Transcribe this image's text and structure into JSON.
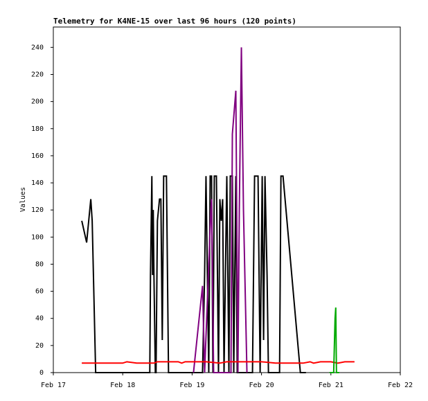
{
  "chart_data": {
    "type": "line",
    "title": "Telemetry for K4NE-15 over last 96 hours (120 points)",
    "y_label": "Values",
    "xlim": [
      17,
      22
    ],
    "xticks": [
      {
        "value": 17,
        "label": "Feb 17"
      },
      {
        "value": 18,
        "label": "Feb 18"
      },
      {
        "value": 19,
        "label": "Feb 19"
      },
      {
        "value": 20,
        "label": "Feb 20"
      },
      {
        "value": 21,
        "label": "Feb 21"
      },
      {
        "value": 22,
        "label": "Feb 22"
      }
    ],
    "ylim": [
      0,
      255
    ],
    "yticks": [
      0,
      20,
      40,
      60,
      80,
      100,
      120,
      140,
      160,
      180,
      200,
      220,
      240
    ],
    "series": [
      {
        "color": "#000000",
        "x": [
          17.41,
          17.48,
          17.51,
          17.54,
          17.56,
          17.61,
          18.39,
          18.4,
          18.42,
          18.43,
          18.44,
          18.45,
          18.47,
          18.48,
          18.5,
          18.53,
          18.55,
          18.57,
          18.59,
          18.63,
          18.66,
          19.15,
          19.18,
          19.2,
          19.22,
          19.24,
          19.26,
          19.28,
          19.3,
          19.32,
          19.35,
          19.38,
          19.4,
          19.42,
          19.43,
          19.44,
          19.46,
          19.5,
          19.53,
          19.55,
          19.58,
          19.6,
          19.63,
          19.65,
          19.87,
          19.9,
          19.95,
          19.98,
          20.01,
          20.03,
          20.05,
          20.08,
          20.1,
          20.26,
          20.28,
          20.31,
          20.56,
          20.64
        ],
        "values": [
          112,
          96,
          112,
          128,
          112,
          0,
          0,
          72,
          145,
          72,
          120,
          72,
          0,
          0,
          112,
          128,
          128,
          24,
          145,
          145,
          0,
          0,
          72,
          145,
          72,
          0,
          145,
          145,
          0,
          145,
          145,
          0,
          128,
          112,
          120,
          128,
          0,
          145,
          0,
          145,
          145,
          0,
          145,
          0,
          0,
          145,
          145,
          0,
          145,
          24,
          145,
          72,
          0,
          0,
          145,
          145,
          0,
          0
        ]
      },
      {
        "color": "#800080",
        "x": [
          19.02,
          19.15,
          19.18,
          19.27,
          19.28,
          19.31,
          19.56,
          19.58,
          19.63,
          19.66,
          19.68,
          19.71,
          19.74,
          19.79
        ],
        "values": [
          0,
          64,
          0,
          120,
          128,
          0,
          0,
          176,
          208,
          0,
          120,
          240,
          120,
          0
        ]
      },
      {
        "color": "#ff0000",
        "x": [
          17.41,
          18.0,
          18.06,
          18.2,
          18.45,
          18.5,
          18.8,
          18.85,
          18.9,
          19.2,
          19.4,
          19.5,
          20.0,
          20.2,
          20.6,
          20.7,
          20.75,
          20.85,
          21.0,
          21.1,
          21.2,
          21.34
        ],
        "values": [
          7,
          7,
          8,
          7,
          7,
          8,
          8,
          7,
          8,
          8,
          7,
          8,
          8,
          7,
          7,
          8,
          7,
          8,
          8,
          7,
          8,
          8
        ]
      },
      {
        "color": "#00aa00",
        "x": [
          20.98,
          21.04,
          21.06,
          21.07,
          21.08,
          21.12
        ],
        "values": [
          0,
          0,
          40,
          48,
          0,
          0
        ]
      }
    ]
  }
}
